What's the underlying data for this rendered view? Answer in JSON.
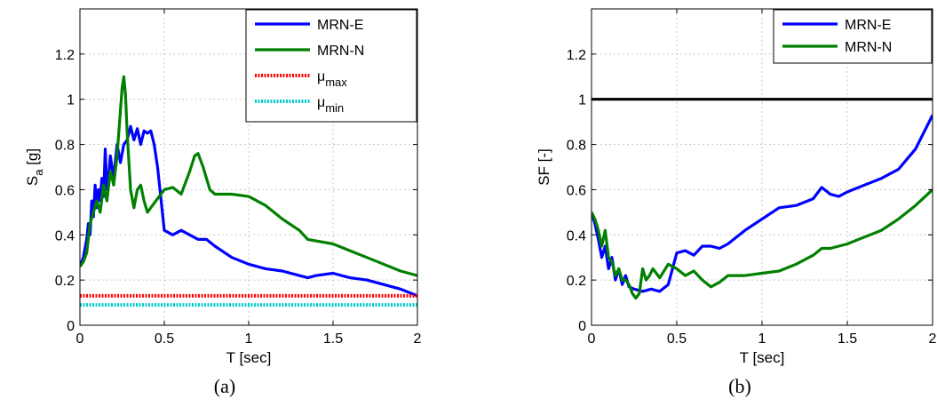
{
  "chart_data": [
    {
      "type": "line",
      "caption": "(a)",
      "xlabel": "T [sec]",
      "ylabel": "S",
      "ylabel_sub": "a",
      "ylabel_unit": " [g]",
      "xlim": [
        0,
        2
      ],
      "ylim": [
        0,
        1.4
      ],
      "x_ticks": [
        "0",
        "0.5",
        "1",
        "1.5",
        "2"
      ],
      "x_tick_values": [
        0,
        0.5,
        1,
        1.5,
        2
      ],
      "y_ticks": [
        "0",
        "0.2",
        "0.4",
        "0.6",
        "0.8",
        "1",
        "1.2"
      ],
      "y_tick_values": [
        0,
        0.2,
        0.4,
        0.6,
        0.8,
        1,
        1.2
      ],
      "grid": true,
      "legend_position": "top-right",
      "series": [
        {
          "name": "MRN-E",
          "color": "#0000ff",
          "style": "solid",
          "x": [
            0,
            0.02,
            0.04,
            0.05,
            0.06,
            0.07,
            0.08,
            0.09,
            0.1,
            0.11,
            0.12,
            0.13,
            0.14,
            0.15,
            0.16,
            0.17,
            0.18,
            0.2,
            0.22,
            0.24,
            0.26,
            0.28,
            0.3,
            0.32,
            0.34,
            0.36,
            0.38,
            0.4,
            0.42,
            0.44,
            0.46,
            0.5,
            0.55,
            0.6,
            0.65,
            0.7,
            0.75,
            0.8,
            0.9,
            1.0,
            1.1,
            1.2,
            1.3,
            1.35,
            1.4,
            1.5,
            1.6,
            1.7,
            1.8,
            1.9,
            2.0
          ],
          "y": [
            0.26,
            0.3,
            0.38,
            0.45,
            0.4,
            0.55,
            0.48,
            0.62,
            0.52,
            0.6,
            0.55,
            0.65,
            0.57,
            0.78,
            0.6,
            0.65,
            0.75,
            0.65,
            0.8,
            0.72,
            0.8,
            0.82,
            0.88,
            0.82,
            0.87,
            0.8,
            0.86,
            0.85,
            0.86,
            0.8,
            0.7,
            0.42,
            0.4,
            0.42,
            0.4,
            0.38,
            0.38,
            0.35,
            0.3,
            0.27,
            0.25,
            0.24,
            0.22,
            0.21,
            0.22,
            0.23,
            0.21,
            0.2,
            0.18,
            0.16,
            0.13
          ]
        },
        {
          "name": "MRN-N",
          "color": "#008000",
          "style": "solid",
          "x": [
            0,
            0.02,
            0.04,
            0.06,
            0.08,
            0.1,
            0.12,
            0.14,
            0.16,
            0.18,
            0.2,
            0.22,
            0.24,
            0.25,
            0.26,
            0.27,
            0.28,
            0.3,
            0.32,
            0.34,
            0.36,
            0.38,
            0.4,
            0.45,
            0.5,
            0.55,
            0.6,
            0.65,
            0.68,
            0.7,
            0.73,
            0.77,
            0.8,
            0.9,
            1.0,
            1.1,
            1.2,
            1.3,
            1.35,
            1.5,
            1.6,
            1.7,
            1.8,
            1.9,
            2.0
          ],
          "y": [
            0.26,
            0.28,
            0.32,
            0.45,
            0.5,
            0.55,
            0.5,
            0.62,
            0.55,
            0.68,
            0.62,
            0.75,
            0.95,
            1.05,
            1.1,
            1.02,
            0.85,
            0.6,
            0.52,
            0.6,
            0.62,
            0.55,
            0.5,
            0.55,
            0.6,
            0.61,
            0.58,
            0.68,
            0.75,
            0.76,
            0.7,
            0.6,
            0.58,
            0.58,
            0.57,
            0.53,
            0.47,
            0.42,
            0.38,
            0.36,
            0.33,
            0.3,
            0.27,
            0.24,
            0.22
          ]
        },
        {
          "name": "μ",
          "name_sub": "max",
          "color": "#ff0000",
          "style": "dotted",
          "x": [
            0,
            2
          ],
          "y": [
            0.13,
            0.13
          ]
        },
        {
          "name": "μ",
          "name_sub": "min",
          "color": "#00cccc",
          "style": "dotted",
          "x": [
            0,
            2
          ],
          "y": [
            0.09,
            0.09
          ]
        }
      ]
    },
    {
      "type": "line",
      "caption": "(b)",
      "xlabel": "T [sec]",
      "ylabel": "SF [-]",
      "ylabel_sub": "",
      "ylabel_unit": "",
      "xlim": [
        0,
        2
      ],
      "ylim": [
        0,
        1.4
      ],
      "x_ticks": [
        "0",
        "0.5",
        "1",
        "1.5",
        "2"
      ],
      "x_tick_values": [
        0,
        0.5,
        1,
        1.5,
        2
      ],
      "y_ticks": [
        "0",
        "0.2",
        "0.4",
        "0.6",
        "0.8",
        "1",
        "1.2"
      ],
      "y_tick_values": [
        0,
        0.2,
        0.4,
        0.6,
        0.8,
        1,
        1.2
      ],
      "grid": true,
      "legend_position": "top-right",
      "series": [
        {
          "name": "MRN-E",
          "color": "#0000ff",
          "style": "solid",
          "x": [
            0,
            0.02,
            0.04,
            0.06,
            0.08,
            0.1,
            0.12,
            0.14,
            0.16,
            0.18,
            0.2,
            0.22,
            0.25,
            0.3,
            0.35,
            0.4,
            0.45,
            0.5,
            0.55,
            0.6,
            0.65,
            0.7,
            0.75,
            0.8,
            0.9,
            1.0,
            1.1,
            1.2,
            1.3,
            1.35,
            1.4,
            1.45,
            1.5,
            1.6,
            1.7,
            1.8,
            1.9,
            2.0
          ],
          "y": [
            0.5,
            0.45,
            0.38,
            0.3,
            0.35,
            0.25,
            0.3,
            0.2,
            0.25,
            0.18,
            0.22,
            0.17,
            0.16,
            0.15,
            0.16,
            0.15,
            0.18,
            0.32,
            0.33,
            0.31,
            0.35,
            0.35,
            0.34,
            0.36,
            0.42,
            0.47,
            0.52,
            0.53,
            0.56,
            0.61,
            0.58,
            0.57,
            0.59,
            0.62,
            0.65,
            0.69,
            0.78,
            0.93
          ]
        },
        {
          "name": "MRN-N",
          "color": "#008000",
          "style": "solid",
          "x": [
            0,
            0.02,
            0.04,
            0.06,
            0.08,
            0.1,
            0.12,
            0.14,
            0.16,
            0.18,
            0.2,
            0.22,
            0.24,
            0.26,
            0.28,
            0.3,
            0.32,
            0.34,
            0.36,
            0.4,
            0.45,
            0.5,
            0.55,
            0.6,
            0.65,
            0.7,
            0.75,
            0.8,
            0.9,
            1.0,
            1.1,
            1.2,
            1.3,
            1.35,
            1.4,
            1.5,
            1.6,
            1.7,
            1.8,
            1.9,
            2.0
          ],
          "y": [
            0.5,
            0.47,
            0.42,
            0.35,
            0.42,
            0.3,
            0.28,
            0.22,
            0.25,
            0.2,
            0.2,
            0.18,
            0.14,
            0.12,
            0.14,
            0.25,
            0.2,
            0.22,
            0.25,
            0.21,
            0.27,
            0.25,
            0.22,
            0.24,
            0.2,
            0.17,
            0.19,
            0.22,
            0.22,
            0.23,
            0.24,
            0.27,
            0.31,
            0.34,
            0.34,
            0.36,
            0.39,
            0.42,
            0.47,
            0.53,
            0.6
          ]
        },
        {
          "name": "",
          "color": "#000000",
          "style": "solid",
          "legend": false,
          "x": [
            0,
            2
          ],
          "y": [
            1,
            1
          ]
        }
      ]
    }
  ]
}
